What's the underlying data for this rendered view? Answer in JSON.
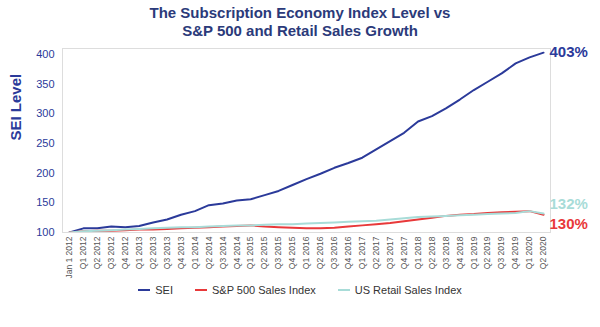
{
  "chart_data": {
    "type": "line",
    "title": "The Subscription Economy Index Level vs\nS&P 500 and Retail Sales Growth",
    "y_label": "SEI Level",
    "categories": [
      "Jan 1 2012",
      "Q1 2012",
      "Q2 2012",
      "Q3 2012",
      "Q4 2012",
      "Q1 2013",
      "Q2 2013",
      "Q3 2013",
      "Q4 2013",
      "Q1 2014",
      "Q2 2014",
      "Q3 2014",
      "Q4 2014",
      "Q1 2015",
      "Q2 2015",
      "Q3 2015",
      "Q4 2015",
      "Q1 2016",
      "Q2 2016",
      "Q3 2016",
      "Q4 2016",
      "Q1 2017",
      "Q2 2017",
      "Q3 2017",
      "Q4 2017",
      "Q1 2018",
      "Q2 2018",
      "Q3 2018",
      "Q4 2018",
      "Q1 2019",
      "Q2 2019",
      "Q3 2019",
      "Q4 2019",
      "Q1 2020",
      "Q2 2020"
    ],
    "series": [
      {
        "name": "SEI",
        "color": "#2b3a9a",
        "end_label": "403%",
        "values": [
          100,
          107,
          107,
          110,
          109,
          111,
          117,
          122,
          130,
          136,
          146,
          149,
          154,
          156,
          163,
          170,
          180,
          190,
          199,
          209,
          217,
          226,
          240,
          254,
          268,
          287,
          296,
          309,
          324,
          340,
          354,
          368,
          385,
          395,
          403
        ]
      },
      {
        "name": "S&P 500 Sales Index",
        "color": "#e8393a",
        "end_label": "130%",
        "values": [
          100,
          102,
          103,
          103,
          104,
          105,
          105,
          106,
          107,
          108,
          109,
          110,
          111,
          112,
          110,
          109,
          108,
          107,
          107,
          108,
          110,
          112,
          114,
          116,
          119,
          122,
          125,
          128,
          130,
          131,
          133,
          134,
          135,
          136,
          130
        ]
      },
      {
        "name": "US Retail Sales Index",
        "color": "#a8dcd8",
        "end_label": "132%",
        "values": [
          100,
          102,
          103,
          104,
          105,
          106,
          107,
          108,
          109,
          109,
          110,
          111,
          112,
          112,
          113,
          114,
          114,
          115,
          116,
          117,
          118,
          119,
          120,
          122,
          124,
          126,
          127,
          128,
          129,
          130,
          131,
          132,
          133,
          136,
          132
        ]
      }
    ],
    "ylim": [
      100,
      410
    ],
    "yticks": [
      100,
      150,
      200,
      250,
      300,
      350,
      400
    ],
    "grid": false,
    "legend": "bottom"
  }
}
